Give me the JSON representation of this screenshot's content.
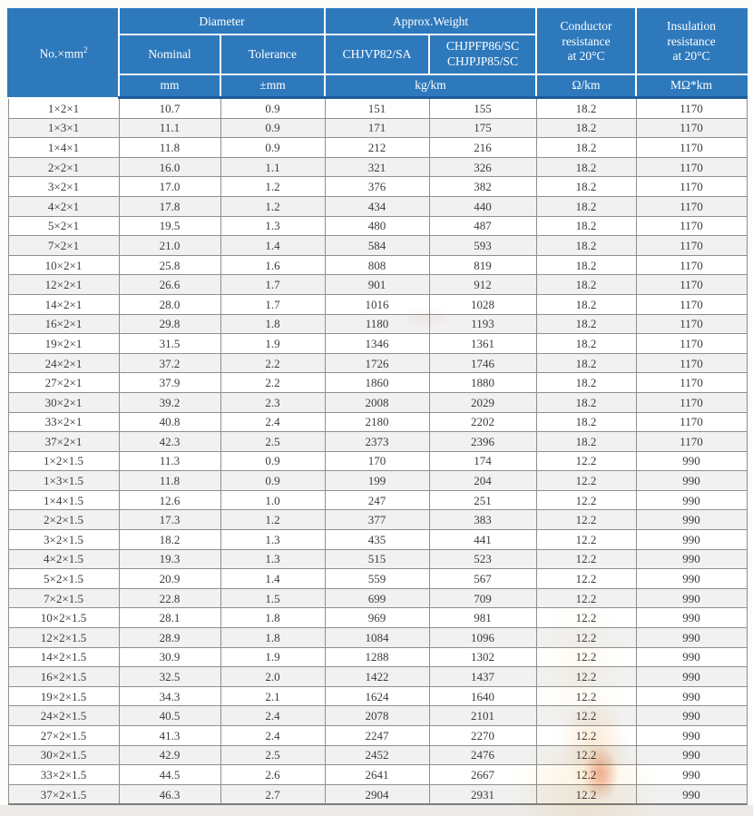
{
  "table": {
    "header": {
      "no_label": "No.×mm",
      "no_sup": "2",
      "group_diameter": "Diameter",
      "group_weight": "Approx.Weight",
      "sub_nominal": "Nominal",
      "sub_tolerance": "Tolerance",
      "sub_weight_a": "CHJVP82/SA",
      "sub_weight_b_lines": [
        "CHJPFP86/SC",
        "CHJPJP85/SC"
      ],
      "conductor_lines": [
        "Conductor",
        "resistance",
        "at 20°C"
      ],
      "insulation_lines": [
        "Insulation",
        "resistance",
        "at 20°C"
      ],
      "unit_mm": "mm",
      "unit_tolerance": "±mm",
      "unit_weight": "kg/km",
      "unit_conductor": "Ω/km",
      "unit_insulation": "MΩ*km"
    },
    "rows": [
      [
        "1×2×1",
        "10.7",
        "0.9",
        "151",
        "155",
        "18.2",
        "1170"
      ],
      [
        "1×3×1",
        "11.1",
        "0.9",
        "171",
        "175",
        "18.2",
        "1170"
      ],
      [
        "1×4×1",
        "11.8",
        "0.9",
        "212",
        "216",
        "18.2",
        "1170"
      ],
      [
        "2×2×1",
        "16.0",
        "1.1",
        "321",
        "326",
        "18.2",
        "1170"
      ],
      [
        "3×2×1",
        "17.0",
        "1.2",
        "376",
        "382",
        "18.2",
        "1170"
      ],
      [
        "4×2×1",
        "17.8",
        "1.2",
        "434",
        "440",
        "18.2",
        "1170"
      ],
      [
        "5×2×1",
        "19.5",
        "1.3",
        "480",
        "487",
        "18.2",
        "1170"
      ],
      [
        "7×2×1",
        "21.0",
        "1.4",
        "584",
        "593",
        "18.2",
        "1170"
      ],
      [
        "10×2×1",
        "25.8",
        "1.6",
        "808",
        "819",
        "18.2",
        "1170"
      ],
      [
        "12×2×1",
        "26.6",
        "1.7",
        "901",
        "912",
        "18.2",
        "1170"
      ],
      [
        "14×2×1",
        "28.0",
        "1.7",
        "1016",
        "1028",
        "18.2",
        "1170"
      ],
      [
        "16×2×1",
        "29.8",
        "1.8",
        "1180",
        "1193",
        "18.2",
        "1170"
      ],
      [
        "19×2×1",
        "31.5",
        "1.9",
        "1346",
        "1361",
        "18.2",
        "1170"
      ],
      [
        "24×2×1",
        "37.2",
        "2.2",
        "1726",
        "1746",
        "18.2",
        "1170"
      ],
      [
        "27×2×1",
        "37.9",
        "2.2",
        "1860",
        "1880",
        "18.2",
        "1170"
      ],
      [
        "30×2×1",
        "39.2",
        "2.3",
        "2008",
        "2029",
        "18.2",
        "1170"
      ],
      [
        "33×2×1",
        "40.8",
        "2.4",
        "2180",
        "2202",
        "18.2",
        "1170"
      ],
      [
        "37×2×1",
        "42.3",
        "2.5",
        "2373",
        "2396",
        "18.2",
        "1170"
      ],
      [
        "1×2×1.5",
        "11.3",
        "0.9",
        "170",
        "174",
        "12.2",
        "990"
      ],
      [
        "1×3×1.5",
        "11.8",
        "0.9",
        "199",
        "204",
        "12.2",
        "990"
      ],
      [
        "1×4×1.5",
        "12.6",
        "1.0",
        "247",
        "251",
        "12.2",
        "990"
      ],
      [
        "2×2×1.5",
        "17.3",
        "1.2",
        "377",
        "383",
        "12.2",
        "990"
      ],
      [
        "3×2×1.5",
        "18.2",
        "1.3",
        "435",
        "441",
        "12.2",
        "990"
      ],
      [
        "4×2×1.5",
        "19.3",
        "1.3",
        "515",
        "523",
        "12.2",
        "990"
      ],
      [
        "5×2×1.5",
        "20.9",
        "1.4",
        "559",
        "567",
        "12.2",
        "990"
      ],
      [
        "7×2×1.5",
        "22.8",
        "1.5",
        "699",
        "709",
        "12.2",
        "990"
      ],
      [
        "10×2×1.5",
        "28.1",
        "1.8",
        "969",
        "981",
        "12.2",
        "990"
      ],
      [
        "12×2×1.5",
        "28.9",
        "1.8",
        "1084",
        "1096",
        "12.2",
        "990"
      ],
      [
        "14×2×1.5",
        "30.9",
        "1.9",
        "1288",
        "1302",
        "12.2",
        "990"
      ],
      [
        "16×2×1.5",
        "32.5",
        "2.0",
        "1422",
        "1437",
        "12.2",
        "990"
      ],
      [
        "19×2×1.5",
        "34.3",
        "2.1",
        "1624",
        "1640",
        "12.2",
        "990"
      ],
      [
        "24×2×1.5",
        "40.5",
        "2.4",
        "2078",
        "2101",
        "12.2",
        "990"
      ],
      [
        "27×2×1.5",
        "41.3",
        "2.4",
        "2247",
        "2270",
        "12.2",
        "990"
      ],
      [
        "30×2×1.5",
        "42.9",
        "2.5",
        "2452",
        "2476",
        "12.2",
        "990"
      ],
      [
        "33×2×1.5",
        "44.5",
        "2.6",
        "2641",
        "2667",
        "12.2",
        "990"
      ],
      [
        "37×2×1.5",
        "46.3",
        "2.7",
        "2904",
        "2931",
        "12.2",
        "990"
      ]
    ]
  },
  "colors": {
    "header_bg": "#2e79bc",
    "header_text": "#ffffff",
    "header_divider": "#1c5c9c",
    "row_stripe": "#f1f1f1",
    "cell_border": "#8f8f8f",
    "body_text": "#3b3b3b",
    "watermark_orange": "#e05a28"
  }
}
